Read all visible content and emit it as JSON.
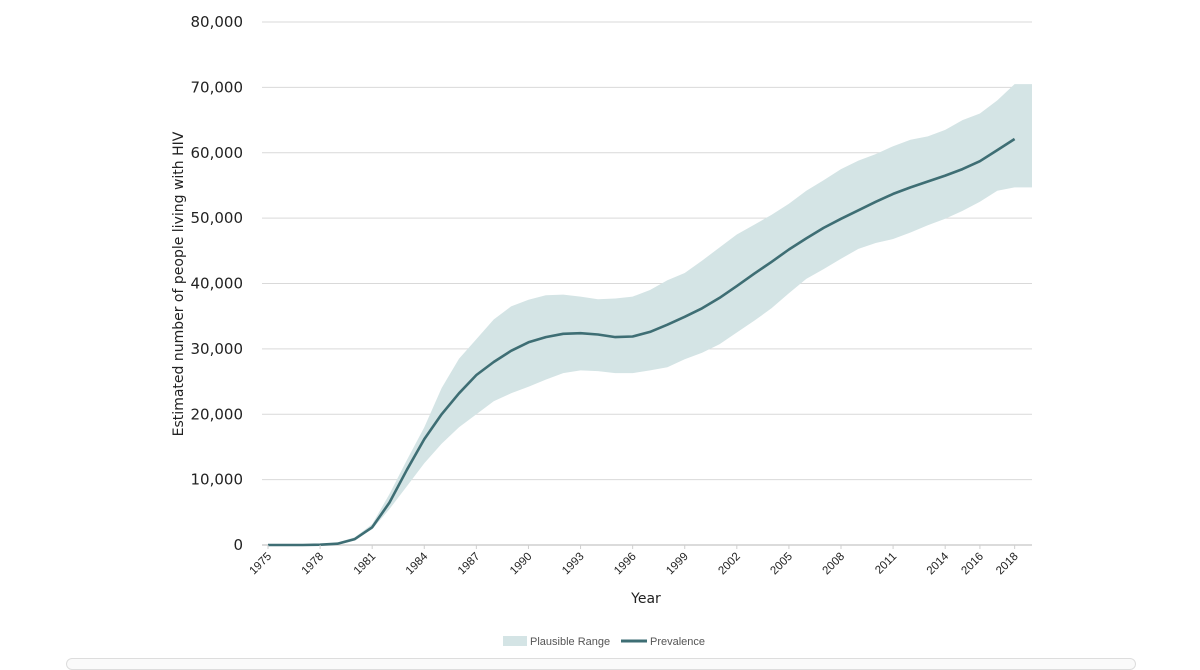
{
  "colors": {
    "band": "#d4e4e5",
    "line": "#3e6e74",
    "grid": "#d9d9d9",
    "axis": "#cfcfcf"
  },
  "chart_data": {
    "type": "line",
    "title": "",
    "xlabel": "Year",
    "ylabel": "Estimated number of people living with HIV",
    "ylim": [
      0,
      80000
    ],
    "yticks": [
      0,
      10000,
      20000,
      30000,
      40000,
      50000,
      60000,
      70000,
      80000
    ],
    "ytick_labels": [
      "0",
      "10,000",
      "20,000",
      "30,000",
      "40,000",
      "50,000",
      "60,000",
      "70,000",
      "80,000"
    ],
    "xlim": [
      1975,
      2019
    ],
    "xticks": [
      1975,
      1978,
      1981,
      1984,
      1987,
      1990,
      1993,
      1996,
      1999,
      2002,
      2005,
      2008,
      2011,
      2014,
      2016,
      2018
    ],
    "xtick_labels": [
      "1975",
      "1978",
      "1981",
      "1984",
      "1987",
      "1990",
      "1993",
      "1996",
      "1999",
      "2002",
      "2005",
      "2008",
      "2011",
      "2014",
      "2016",
      "2018"
    ],
    "grid": true,
    "legend_position": "bottom-center",
    "x": [
      1975,
      1976,
      1977,
      1978,
      1979,
      1980,
      1981,
      1982,
      1983,
      1984,
      1985,
      1986,
      1987,
      1988,
      1989,
      1990,
      1991,
      1992,
      1993,
      1994,
      1995,
      1996,
      1997,
      1998,
      1999,
      2000,
      2001,
      2002,
      2003,
      2004,
      2005,
      2006,
      2007,
      2008,
      2009,
      2010,
      2011,
      2012,
      2013,
      2014,
      2015,
      2016,
      2017,
      2018,
      2019
    ],
    "series": [
      {
        "name": "Plausible Range",
        "kind": "band",
        "lower": [
          0,
          0,
          0,
          0,
          300,
          900,
          2400,
          5500,
          9000,
          12500,
          15500,
          18000,
          20000,
          22000,
          23200,
          24200,
          25300,
          26300,
          26700,
          26600,
          26300,
          26300,
          26700,
          27200,
          28400,
          29400,
          30700,
          32500,
          34300,
          36200,
          38500,
          40700,
          42200,
          43800,
          45300,
          46200,
          46800,
          47800,
          48900,
          49900,
          51100,
          52500,
          54200,
          54700,
          54700
        ],
        "upper": [
          0,
          0,
          0,
          0,
          400,
          1200,
          3200,
          7800,
          13000,
          18000,
          24000,
          28500,
          31500,
          34500,
          36500,
          37500,
          38200,
          38300,
          38000,
          37600,
          37700,
          38000,
          39000,
          40500,
          41600,
          43500,
          45500,
          47500,
          49000,
          50500,
          52200,
          54200,
          55800,
          57500,
          58800,
          59800,
          61000,
          62000,
          62500,
          63500,
          65000,
          66000,
          68000,
          70500,
          70500
        ]
      },
      {
        "name": "Prevalence",
        "kind": "line",
        "values": [
          0,
          0,
          0,
          50,
          200,
          900,
          2700,
          6500,
          11500,
          16200,
          20000,
          23200,
          26000,
          28000,
          29700,
          31000,
          31800,
          32300,
          32400,
          32200,
          31800,
          31900,
          32600,
          33700,
          34900,
          36200,
          37800,
          39600,
          41500,
          43300,
          45200,
          46900,
          48500,
          49900,
          51200,
          52500,
          53700,
          54700,
          55600,
          56500,
          57500,
          58700,
          60400,
          62100,
          62100
        ],
        "x_end": 2018
      }
    ]
  }
}
